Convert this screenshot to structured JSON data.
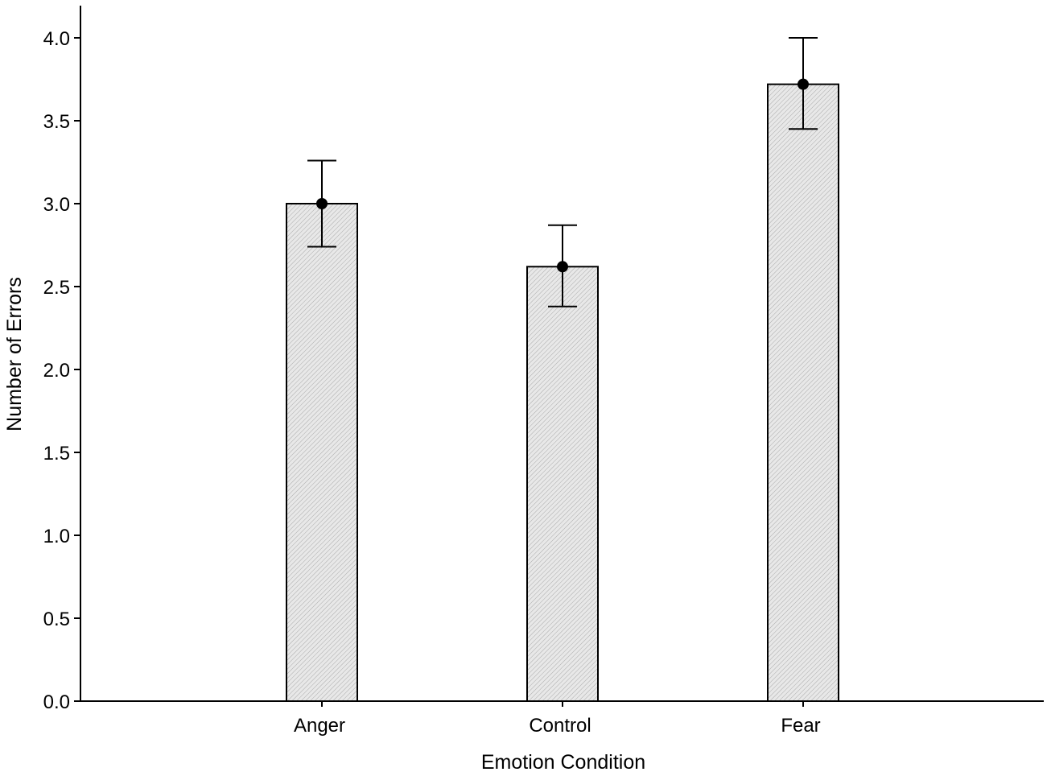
{
  "chart_data": {
    "type": "bar",
    "categories": [
      "Anger",
      "Control",
      "Fear"
    ],
    "values": [
      3.0,
      2.62,
      3.72
    ],
    "error_bars": [
      {
        "low": 2.74,
        "high": 3.26
      },
      {
        "low": 2.38,
        "high": 2.87
      },
      {
        "low": 3.45,
        "high": 4.0
      }
    ],
    "xlabel": "Emotion Condition",
    "ylabel": "Number of Errors",
    "ylim": [
      0,
      4.0
    ],
    "yticks": [
      "0.0",
      "0.5",
      "1.0",
      "1.5",
      "2.0",
      "2.5",
      "3.0",
      "3.5",
      "4.0"
    ],
    "grid": false,
    "bar_fill": "hatched light gray",
    "colors": {
      "bar_fill": "#e6e6e6",
      "stroke": "#000000",
      "marker": "#000000"
    }
  }
}
